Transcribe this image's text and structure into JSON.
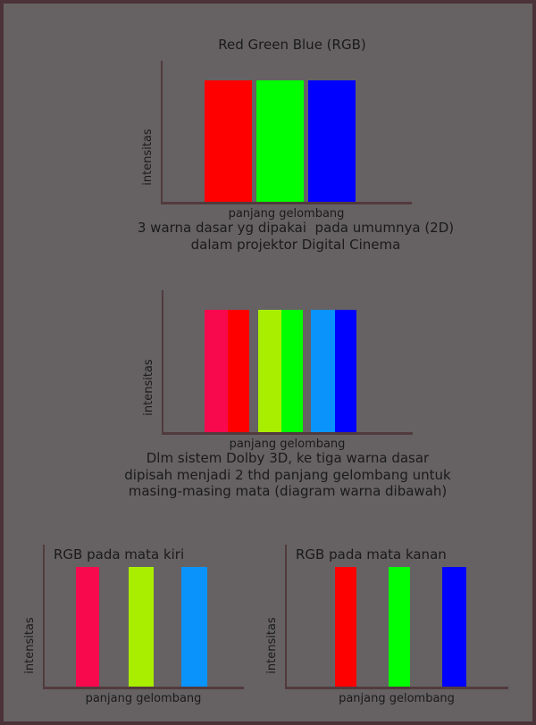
{
  "page": {
    "background": "#666264",
    "border_color": "#4b3238",
    "axis_color": "#513a3d",
    "text_color": "#1a1a1a"
  },
  "captions": {
    "under_chart1": [
      "3 warna dasar yg dipakai  pada umumnya (2D)",
      "dalam projektor Digital Cinema"
    ],
    "under_chart2": [
      "Dlm sistem Dolby 3D, ke tiga warna dasar",
      "dipisah menjadi 2 thd panjang gelombang untuk",
      "masing-masing mata (diagram warna dibawah)"
    ]
  },
  "colors": {
    "red": "#ff0000",
    "green": "#00ff00",
    "blue": "#0000ff",
    "left_eye_red": "#f8094d",
    "left_eye_green": "#a9ee00",
    "left_eye_blue": "#0b93fc"
  },
  "chart_data": [
    {
      "type": "bar",
      "title": "Red Green Blue (RGB)",
      "xlabel": "panjang gelombang",
      "ylabel": "intensitas",
      "categories": [
        "red",
        "green",
        "blue"
      ],
      "values": [
        1,
        1,
        1
      ],
      "ylim": [
        0,
        1
      ],
      "grid": false,
      "legend": "none",
      "bars": [
        {
          "name": "red",
          "color": "#ff0000",
          "value": 1
        },
        {
          "name": "green",
          "color": "#00ff00",
          "value": 1
        },
        {
          "name": "blue",
          "color": "#0000ff",
          "value": 1
        }
      ]
    },
    {
      "type": "bar",
      "title": "",
      "xlabel": "panjang gelombang",
      "ylabel": "intensitas",
      "categories": [
        "red band (split)",
        "green band (split)",
        "blue band (split)"
      ],
      "values": [
        1,
        1,
        1,
        1,
        1,
        1
      ],
      "ylim": [
        0,
        1
      ],
      "grid": false,
      "legend": "none",
      "bars": [
        {
          "name": "left-eye-red-band",
          "color": "#f8094d",
          "value": 1
        },
        {
          "name": "right-eye-red-band",
          "color": "#ff0000",
          "value": 1
        },
        {
          "name": "left-eye-green-band",
          "color": "#a9ee00",
          "value": 1
        },
        {
          "name": "right-eye-green-band",
          "color": "#00ff00",
          "value": 1
        },
        {
          "name": "left-eye-blue-band",
          "color": "#0b93fc",
          "value": 1
        },
        {
          "name": "right-eye-blue-band",
          "color": "#0000ff",
          "value": 1
        }
      ]
    },
    {
      "type": "bar",
      "title": "RGB pada mata kiri",
      "xlabel": "panjang gelombang",
      "ylabel": "intensitas",
      "categories": [
        "red",
        "green",
        "blue"
      ],
      "values": [
        1,
        1,
        1
      ],
      "ylim": [
        0,
        1
      ],
      "grid": false,
      "legend": "none",
      "bars": [
        {
          "name": "left-eye-red",
          "color": "#f8094d",
          "value": 1
        },
        {
          "name": "left-eye-green",
          "color": "#a9ee00",
          "value": 1
        },
        {
          "name": "left-eye-blue",
          "color": "#0b93fc",
          "value": 1
        }
      ]
    },
    {
      "type": "bar",
      "title": "RGB pada mata kanan",
      "xlabel": "panjang gelombang",
      "ylabel": "intensitas",
      "categories": [
        "red",
        "green",
        "blue"
      ],
      "values": [
        1,
        1,
        1
      ],
      "ylim": [
        0,
        1
      ],
      "grid": false,
      "legend": "none",
      "bars": [
        {
          "name": "right-eye-red",
          "color": "#ff0000",
          "value": 1
        },
        {
          "name": "right-eye-green",
          "color": "#00ff00",
          "value": 1
        },
        {
          "name": "right-eye-blue",
          "color": "#0000ff",
          "value": 1
        }
      ]
    }
  ]
}
